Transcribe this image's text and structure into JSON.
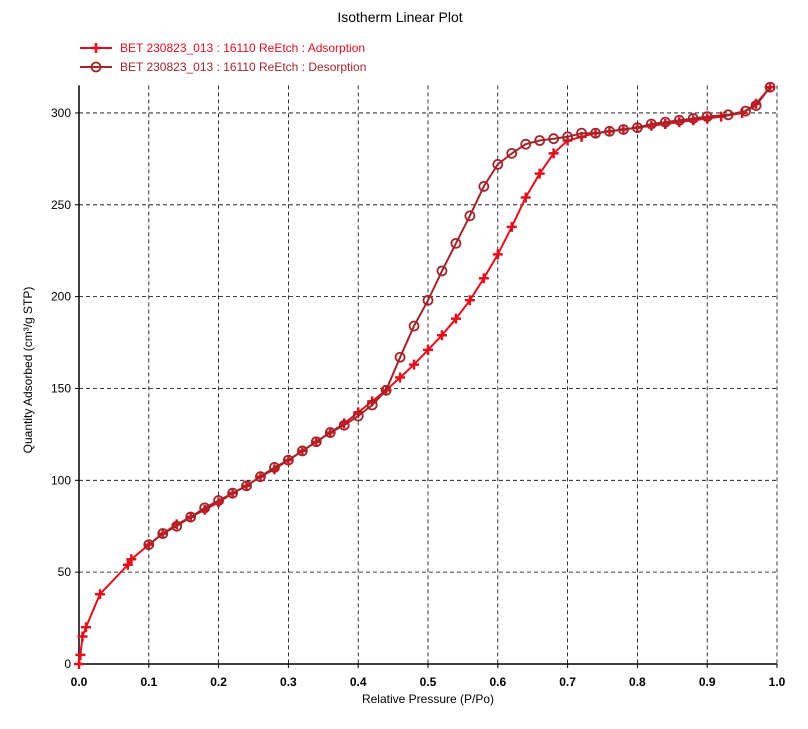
{
  "chart_data": {
    "type": "line",
    "title": "Isotherm Linear Plot",
    "x_label": "Relative Pressure (P/Po)",
    "y_label": "Quantity Adsorbed (cm³/g STP)",
    "xlim": [
      0,
      1
    ],
    "ylim": [
      0,
      315
    ],
    "xticks": [
      {
        "value": 0,
        "label": "0.0"
      },
      0.1,
      0.2,
      0.3,
      0.4,
      0.5,
      0.6,
      0.7,
      0.8,
      0.9,
      {
        "value": 1,
        "label": "1.0"
      }
    ],
    "yticks": [
      0,
      50,
      100,
      150,
      200,
      250,
      300
    ],
    "grid": true,
    "legend": "top-left",
    "series": [
      {
        "name": "BET 230823_013 : 16110 ReEtch : Adsorption",
        "color": "#e0101e",
        "marker": "plus",
        "x": [
          0.0,
          0.002,
          0.005,
          0.01,
          0.03,
          0.07,
          0.075,
          0.1,
          0.12,
          0.14,
          0.16,
          0.18,
          0.2,
          0.22,
          0.24,
          0.26,
          0.28,
          0.3,
          0.32,
          0.34,
          0.36,
          0.38,
          0.4,
          0.42,
          0.44,
          0.46,
          0.48,
          0.5,
          0.52,
          0.54,
          0.56,
          0.58,
          0.6,
          0.62,
          0.64,
          0.66,
          0.68,
          0.7,
          0.72,
          0.74,
          0.76,
          0.78,
          0.8,
          0.82,
          0.84,
          0.86,
          0.88,
          0.9,
          0.92,
          0.95,
          0.97,
          0.99
        ],
        "values": [
          0,
          5,
          15,
          20,
          38,
          54,
          57,
          65,
          71,
          76,
          80,
          84,
          88,
          93,
          97,
          102,
          106,
          111,
          116,
          121,
          126,
          131,
          137,
          143,
          149,
          156,
          163,
          171,
          179,
          188,
          198,
          210,
          223,
          238,
          254,
          267,
          278,
          285,
          287,
          289,
          290,
          291,
          292,
          293,
          294,
          295,
          296,
          297,
          298,
          300,
          305,
          314
        ]
      },
      {
        "name": "BET 230823_013 : 16110 ReEtch : Desorption",
        "color": "#a0262c",
        "marker": "circle",
        "x": [
          0.99,
          0.97,
          0.955,
          0.93,
          0.9,
          0.88,
          0.86,
          0.84,
          0.82,
          0.8,
          0.78,
          0.76,
          0.74,
          0.72,
          0.7,
          0.68,
          0.66,
          0.64,
          0.62,
          0.6,
          0.58,
          0.56,
          0.54,
          0.52,
          0.5,
          0.48,
          0.46,
          0.44,
          0.42,
          0.4,
          0.38,
          0.36,
          0.34,
          0.32,
          0.3,
          0.28,
          0.26,
          0.24,
          0.22,
          0.2,
          0.18,
          0.16,
          0.14,
          0.12,
          0.1
        ],
        "values": [
          314,
          304,
          301,
          299,
          298,
          297,
          296,
          295,
          294,
          292,
          291,
          290,
          289,
          289,
          287,
          286,
          285,
          283,
          278,
          272,
          260,
          244,
          229,
          214,
          198,
          184,
          167,
          149,
          141,
          135,
          130,
          126,
          121,
          116,
          111,
          107,
          102,
          97,
          93,
          89,
          85,
          80,
          75,
          71,
          65
        ]
      }
    ]
  }
}
